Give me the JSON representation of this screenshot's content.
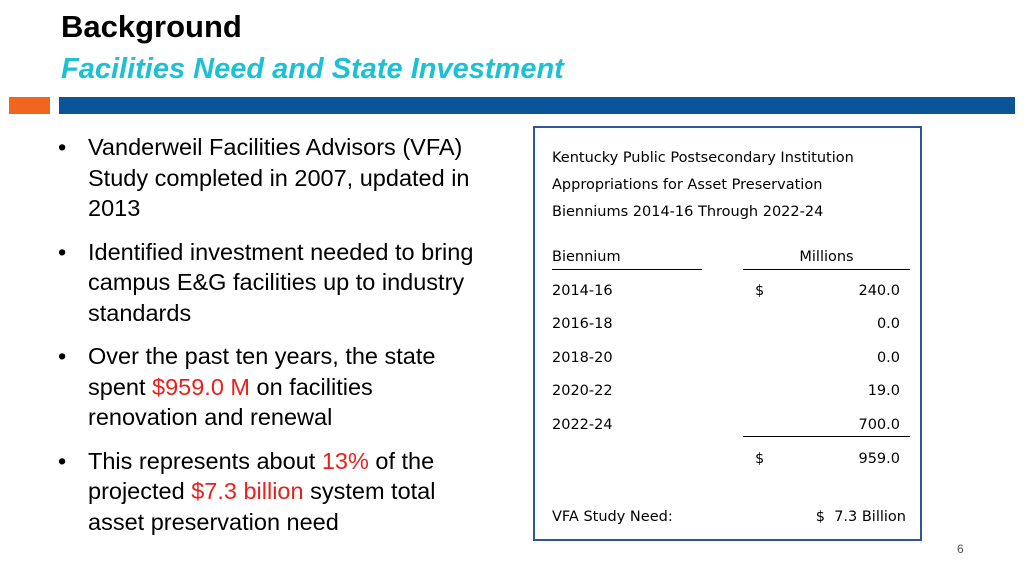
{
  "slide": {
    "title": "Background",
    "subtitle": "Facilities Need and State Investment",
    "page_number": "6",
    "colors": {
      "subtitle": "#1ec0d4",
      "accent_orange": "#f0661e",
      "accent_blue": "#0a5599",
      "highlight": "#e8211c",
      "panel_border": "#2d5597"
    }
  },
  "bullets": [
    {
      "text": "Vanderweil Facilities Advisors (VFA) Study completed in 2007, updated in 2013"
    },
    {
      "text": "Identified investment needed to bring campus E&G facilities up to industry standards"
    },
    {
      "pre": "Over the past ten years, the state spent ",
      "highlight": "$959.0 M",
      "post": " on facilities renovation and renewal"
    },
    {
      "pre": "This represents about ",
      "highlight": "13%",
      "mid": " of the projected ",
      "highlight2": "$7.3 billion",
      "post": " system total asset preservation need"
    }
  ],
  "table": {
    "header_lines": [
      "Kentucky Public Postsecondary Institution",
      "Appropriations for Asset Preservation",
      "Bienniums 2014-16 Through 2022-24"
    ],
    "col_biennium": "Biennium",
    "col_millions": "Millions",
    "rows": [
      {
        "biennium": "2014-16",
        "currency": "$",
        "value": "240.0"
      },
      {
        "biennium": "2016-18",
        "currency": "",
        "value": "0.0"
      },
      {
        "biennium": "2018-20",
        "currency": "",
        "value": "0.0"
      },
      {
        "biennium": "2020-22",
        "currency": "",
        "value": "19.0"
      },
      {
        "biennium": "2022-24",
        "currency": "",
        "value": "700.0"
      }
    ],
    "total": {
      "currency": "$",
      "value": "959.0"
    },
    "vfa_label": "VFA Study Need:",
    "vfa_value": "$  7.3 Billion"
  }
}
